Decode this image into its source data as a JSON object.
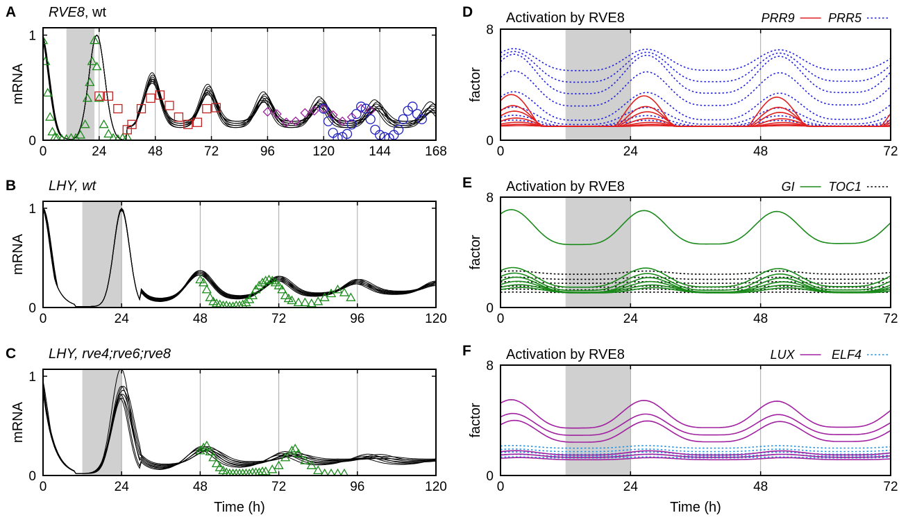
{
  "chart_data": [
    {
      "id": "A",
      "type": "line",
      "letter": "A",
      "title_gene": "RVE8",
      "title_rest": ", wt",
      "ylabel": "mRNA",
      "xlabel": "",
      "xlim": [
        0,
        168
      ],
      "ylim": [
        0,
        1.07
      ],
      "xticks": [
        "0",
        "24",
        "48",
        "72",
        "96",
        "120",
        "144",
        "168"
      ],
      "yticks": [
        "0",
        "1"
      ],
      "shade": [
        10,
        22
      ],
      "model": {
        "form": "rve8",
        "n": 8,
        "hours": 168
      },
      "markers": [
        {
          "name": "data_1",
          "shape": "triangle",
          "color": "#1a8a1a",
          "points": [
            [
              0,
              0.95
            ],
            [
              1,
              0.75
            ],
            [
              2,
              0.45
            ],
            [
              3,
              0.22
            ],
            [
              4,
              0.08
            ],
            [
              5,
              0.03
            ],
            [
              6,
              0.02
            ],
            [
              8,
              0.01
            ],
            [
              10,
              0.01
            ],
            [
              12,
              0.02
            ],
            [
              14,
              0.02
            ],
            [
              16,
              0.05
            ],
            [
              18,
              0.15
            ],
            [
              19,
              0.4
            ],
            [
              20,
              0.55
            ],
            [
              21,
              0.75
            ],
            [
              22,
              0.95
            ],
            [
              23,
              0.7
            ],
            [
              24,
              0.4
            ],
            [
              26,
              0.15
            ],
            [
              28,
              0.06
            ],
            [
              30,
              0.02
            ],
            [
              32,
              0.01
            ],
            [
              34,
              0.02
            ],
            [
              36,
              0.03
            ]
          ]
        },
        {
          "name": "data_2",
          "shape": "square",
          "color": "#c02020",
          "points": [
            [
              24,
              0.42
            ],
            [
              28,
              0.42
            ],
            [
              32,
              0.3
            ],
            [
              36,
              0.1
            ],
            [
              38,
              0.15
            ],
            [
              42,
              0.3
            ],
            [
              46,
              0.4
            ],
            [
              50,
              0.43
            ],
            [
              54,
              0.33
            ],
            [
              58,
              0.22
            ],
            [
              62,
              0.15
            ],
            [
              66,
              0.17
            ],
            [
              70,
              0.3
            ],
            [
              74,
              0.31
            ]
          ]
        },
        {
          "name": "data_3",
          "shape": "diamond",
          "color": "#a020a0",
          "points": [
            [
              96,
              0.27
            ],
            [
              100,
              0.25
            ],
            [
              104,
              0.17
            ],
            [
              108,
              0.18
            ],
            [
              112,
              0.26
            ],
            [
              116,
              0.28
            ],
            [
              120,
              0.3
            ],
            [
              124,
              0.24
            ],
            [
              128,
              0.18
            ],
            [
              132,
              0.22
            ],
            [
              136,
              0.3
            ],
            [
              140,
              0.28
            ]
          ]
        },
        {
          "name": "data_4",
          "shape": "circle",
          "color": "#2020c0",
          "points": [
            [
              120,
              0.3
            ],
            [
              122,
              0.18
            ],
            [
              124,
              0.07
            ],
            [
              126,
              0.02
            ],
            [
              128,
              0.03
            ],
            [
              130,
              0.06
            ],
            [
              132,
              0.15
            ],
            [
              134,
              0.25
            ],
            [
              136,
              0.32
            ],
            [
              138,
              0.3
            ],
            [
              140,
              0.2
            ],
            [
              142,
              0.1
            ],
            [
              144,
              0.05
            ],
            [
              146,
              0.03
            ],
            [
              148,
              0.02
            ],
            [
              150,
              0.05
            ],
            [
              152,
              0.1
            ],
            [
              154,
              0.2
            ],
            [
              156,
              0.28
            ],
            [
              158,
              0.32
            ],
            [
              160,
              0.25
            ],
            [
              162,
              0.2
            ]
          ]
        }
      ]
    },
    {
      "id": "B",
      "type": "line",
      "letter": "B",
      "title_gene": "LHY",
      "title_rest": ", wt",
      "title_rest_italic": true,
      "ylabel": "mRNA",
      "xlabel": "",
      "xlim": [
        0,
        120
      ],
      "ylim": [
        0,
        1.07
      ],
      "xticks": [
        "0",
        "24",
        "48",
        "72",
        "96",
        "120"
      ],
      "yticks": [
        "0",
        "1"
      ],
      "shade": [
        12,
        24
      ],
      "model": {
        "form": "lhy",
        "n": 8,
        "hours": 120
      },
      "markers": [
        {
          "name": "data_1",
          "shape": "triangle",
          "color": "#1a8a1a",
          "points": [
            [
              48,
              0.28
            ],
            [
              49,
              0.25
            ],
            [
              50,
              0.18
            ],
            [
              51,
              0.1
            ],
            [
              52,
              0.06
            ],
            [
              53,
              0.04
            ],
            [
              54,
              0.03
            ],
            [
              55,
              0.02
            ],
            [
              56,
              0.02
            ],
            [
              57,
              0.01
            ],
            [
              58,
              0.01
            ],
            [
              59,
              0.02
            ],
            [
              60,
              0.02
            ],
            [
              61,
              0.03
            ],
            [
              62,
              0.05
            ],
            [
              63,
              0.08
            ],
            [
              64,
              0.12
            ],
            [
              65,
              0.18
            ],
            [
              66,
              0.22
            ],
            [
              67,
              0.25
            ],
            [
              68,
              0.27
            ],
            [
              69,
              0.28
            ],
            [
              70,
              0.27
            ],
            [
              71,
              0.25
            ],
            [
              72,
              0.22
            ],
            [
              73,
              0.18
            ],
            [
              74,
              0.12
            ],
            [
              75,
              0.09
            ],
            [
              76,
              0.07
            ],
            [
              78,
              0.05
            ],
            [
              80,
              0.05
            ],
            [
              82,
              0.04
            ],
            [
              84,
              0.06
            ],
            [
              86,
              0.1
            ],
            [
              88,
              0.14
            ],
            [
              90,
              0.18
            ],
            [
              92,
              0.15
            ],
            [
              94,
              0.1
            ]
          ]
        }
      ]
    },
    {
      "id": "C",
      "type": "line",
      "letter": "C",
      "title_gene": "LHY",
      "title_rest": ", rve4;rve6;rve8",
      "title_rest_italic": true,
      "ylabel": "mRNA",
      "xlabel": "Time (h)",
      "xlim": [
        0,
        120
      ],
      "ylim": [
        0,
        1.07
      ],
      "xticks": [
        "0",
        "24",
        "48",
        "72",
        "96",
        "120"
      ],
      "yticks": [
        "0",
        "1"
      ],
      "shade": [
        12,
        24
      ],
      "model": {
        "form": "lhy_mut",
        "n": 8,
        "hours": 120
      },
      "markers": [
        {
          "name": "data_1",
          "shape": "triangle",
          "color": "#1a8a1a",
          "points": [
            [
              48,
              0.25
            ],
            [
              49,
              0.28
            ],
            [
              50,
              0.3
            ],
            [
              51,
              0.24
            ],
            [
              52,
              0.18
            ],
            [
              53,
              0.12
            ],
            [
              54,
              0.08
            ],
            [
              55,
              0.05
            ],
            [
              56,
              0.03
            ],
            [
              57,
              0.02
            ],
            [
              58,
              0.02
            ],
            [
              59,
              0.02
            ],
            [
              60,
              0.02
            ],
            [
              61,
              0.02
            ],
            [
              62,
              0.02
            ],
            [
              63,
              0.02
            ],
            [
              64,
              0.03
            ],
            [
              65,
              0.03
            ],
            [
              66,
              0.03
            ],
            [
              67,
              0.04
            ],
            [
              68,
              0.04
            ],
            [
              70,
              0.06
            ],
            [
              72,
              0.1
            ],
            [
              74,
              0.18
            ],
            [
              76,
              0.25
            ],
            [
              77,
              0.27
            ],
            [
              78,
              0.22
            ],
            [
              80,
              0.15
            ],
            [
              82,
              0.1
            ],
            [
              84,
              0.05
            ],
            [
              86,
              0.02
            ],
            [
              88,
              0.02
            ],
            [
              90,
              0.02
            ],
            [
              92,
              0.02
            ]
          ]
        }
      ]
    },
    {
      "id": "D",
      "type": "line",
      "letter": "D",
      "title": "Activation by RVE8",
      "ylabel": "factor",
      "xlabel": "",
      "xlim": [
        0,
        72
      ],
      "ylim": [
        0,
        8
      ],
      "xticks": [
        "0",
        "24",
        "48",
        "72"
      ],
      "yticks": [
        "0",
        "8"
      ],
      "shade": [
        12,
        24
      ],
      "legend": [
        {
          "label": "PRR9",
          "color": "#e02020",
          "dash": "solid"
        },
        {
          "label": "PRR5",
          "color": "#2020e0",
          "dash": "dotted"
        }
      ],
      "solid_series": {
        "color": "#e02020",
        "curves": [
          [
            1.0,
            2.3,
            1
          ],
          [
            1.0,
            1.5,
            1
          ],
          [
            1.0,
            1.1,
            1
          ],
          [
            1.0,
            0.6,
            1
          ],
          [
            1.0,
            0.3,
            1
          ],
          [
            1.0,
            0.15,
            1
          ],
          [
            1.0,
            0.05,
            1
          ]
        ]
      },
      "dotted_series": {
        "color": "#2020e0",
        "curves": [
          [
            5.6,
            1.0,
            0
          ],
          [
            5.0,
            1.4,
            0
          ],
          [
            4.4,
            1.8,
            0
          ],
          [
            3.4,
            1.6,
            0
          ],
          [
            2.2,
            1.3,
            0
          ],
          [
            1.6,
            0.8,
            0
          ],
          [
            1.3,
            0.5,
            0
          ],
          [
            1.15,
            0.3,
            0
          ]
        ]
      }
    },
    {
      "id": "E",
      "type": "line",
      "letter": "E",
      "title": "Activation by RVE8",
      "ylabel": "factor",
      "xlabel": "",
      "xlim": [
        0,
        72
      ],
      "ylim": [
        0,
        8
      ],
      "xticks": [
        "0",
        "24",
        "48",
        "72"
      ],
      "yticks": [
        "0",
        "8"
      ],
      "shade": [
        12,
        24
      ],
      "legend": [
        {
          "label": "GI",
          "color": "#1a8a1a",
          "dash": "solid"
        },
        {
          "label": "TOC1",
          "color": "#000000",
          "dash": "dotted"
        }
      ],
      "solid_series": {
        "color": "#1a8a1a",
        "curves": [
          [
            5.5,
            1.6,
            1
          ],
          [
            2.0,
            0.9,
            1
          ],
          [
            1.7,
            0.8,
            1
          ],
          [
            1.5,
            0.7,
            1
          ],
          [
            1.4,
            0.5,
            1
          ],
          [
            1.3,
            0.35,
            1
          ],
          [
            1.2,
            0.25,
            1
          ]
        ]
      },
      "dotted_series": {
        "color": "#000000",
        "curves": [
          [
            2.5,
            0.15,
            0
          ],
          [
            2.1,
            0.1,
            0
          ],
          [
            1.8,
            0.08,
            0
          ],
          [
            1.5,
            0.05,
            0
          ],
          [
            1.3,
            0.03,
            0
          ],
          [
            1.1,
            0.02,
            0
          ]
        ]
      }
    },
    {
      "id": "F",
      "type": "line",
      "letter": "F",
      "title": "Activation by RVE8",
      "ylabel": "factor",
      "xlabel": "Time (h)",
      "xlim": [
        0,
        72
      ],
      "ylim": [
        0,
        8
      ],
      "xticks": [
        "0",
        "24",
        "48",
        "72"
      ],
      "yticks": [
        "0",
        "8"
      ],
      "shade": [
        12,
        24
      ],
      "legend": [
        {
          "label": "LUX",
          "color": "#a020a0",
          "dash": "solid"
        },
        {
          "label": "ELF4",
          "color": "#2090e0",
          "dash": "dotted"
        }
      ],
      "solid_series": {
        "color": "#a020a0",
        "curves": [
          [
            4.2,
            1.3,
            1
          ],
          [
            3.5,
            1.0,
            1
          ],
          [
            3.0,
            1.0,
            1
          ],
          [
            1.6,
            0.2,
            1
          ],
          [
            1.4,
            0.15,
            1
          ],
          [
            1.2,
            0.1,
            1
          ]
        ]
      },
      "dotted_series": {
        "color": "#2090e0",
        "curves": [
          [
            2.05,
            0.12,
            0
          ],
          [
            1.8,
            0.12,
            0
          ],
          [
            1.6,
            0.1,
            0
          ],
          [
            1.45,
            0.08,
            0
          ],
          [
            1.3,
            0.05,
            0
          ]
        ]
      }
    }
  ]
}
